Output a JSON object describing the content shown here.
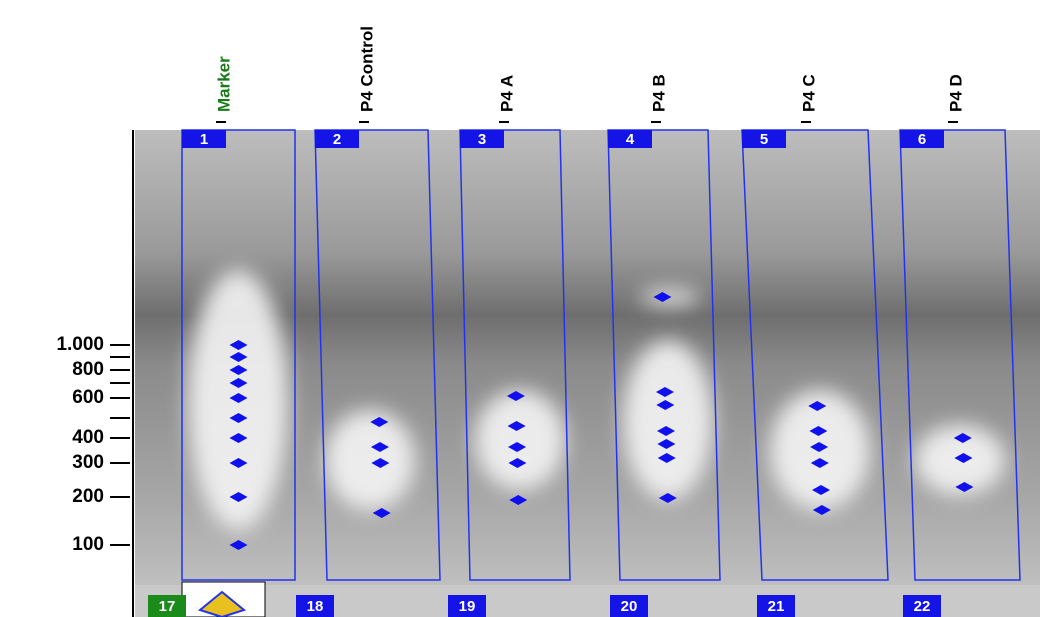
{
  "lanes": [
    {
      "label": "Marker",
      "number": "1"
    },
    {
      "label": "P4 Control",
      "number": "2"
    },
    {
      "label": "P4 A",
      "number": "3"
    },
    {
      "label": "P4 B",
      "number": "4"
    },
    {
      "label": "P4 C",
      "number": "5"
    },
    {
      "label": "P4 D",
      "number": "6"
    }
  ],
  "size_labels": [
    "1.000",
    "800",
    "600",
    "400",
    "300",
    "200",
    "100"
  ],
  "bottom_numbers": [
    "17",
    "18",
    "19",
    "20",
    "21",
    "22"
  ]
}
